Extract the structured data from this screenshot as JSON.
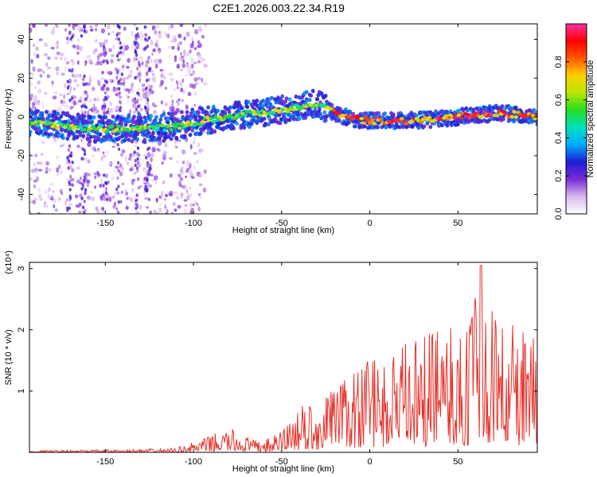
{
  "title": "C2E1.2026.003.22.34.R19",
  "chart_data": [
    {
      "type": "heatmap",
      "xlabel": "Height of straight line (km)",
      "ylabel": "Frequency (Hz)",
      "xlim": [
        -193,
        95
      ],
      "ylim": [
        -50,
        48
      ],
      "xticks": [
        -150,
        -100,
        -50,
        0,
        50
      ],
      "yticks": [
        -40,
        -20,
        0,
        20,
        40
      ],
      "colorbar": {
        "label": "Normalized spectral amplitude",
        "range": [
          0,
          1
        ],
        "ticks": [
          0.0,
          0.2,
          0.4,
          0.6,
          0.8
        ],
        "colors": [
          "#ffffff",
          "#d9b8f0",
          "#7a2bd6",
          "#1e1ed6",
          "#00aaff",
          "#00e0c0",
          "#22dd22",
          "#b8e600",
          "#ffd000",
          "#ff5a00",
          "#ff0000",
          "#ff2fa0"
        ]
      },
      "ridge": [
        {
          "x": -193,
          "y": -3
        },
        {
          "x": -170,
          "y": -5
        },
        {
          "x": -150,
          "y": -6
        },
        {
          "x": -125,
          "y": -6
        },
        {
          "x": -110,
          "y": -5
        },
        {
          "x": -95,
          "y": -2
        },
        {
          "x": -75,
          "y": 1
        },
        {
          "x": -55,
          "y": 3
        },
        {
          "x": -40,
          "y": 5
        },
        {
          "x": -30,
          "y": 7
        },
        {
          "x": -20,
          "y": 2
        },
        {
          "x": -10,
          "y": -1
        },
        {
          "x": 0,
          "y": -2
        },
        {
          "x": 20,
          "y": -2
        },
        {
          "x": 40,
          "y": -1
        },
        {
          "x": 60,
          "y": 1
        },
        {
          "x": 75,
          "y": 2
        },
        {
          "x": 95,
          "y": 0
        }
      ]
    },
    {
      "type": "line",
      "xlabel": "Height of straight line (km)",
      "ylabel": "SNR (10 * v/v)",
      "y_multiplier": "(x10⁴)",
      "xlim": [
        -193,
        95
      ],
      "ylim": [
        0,
        3.1
      ],
      "xticks": [
        -150,
        -100,
        -50,
        0,
        50
      ],
      "yticks": [
        1,
        2,
        3
      ],
      "color": "#e8312a",
      "envelope": [
        {
          "x": -193,
          "y": 0.03
        },
        {
          "x": -130,
          "y": 0.05
        },
        {
          "x": -110,
          "y": 0.07
        },
        {
          "x": -95,
          "y": 0.22
        },
        {
          "x": -80,
          "y": 0.4
        },
        {
          "x": -65,
          "y": 0.2
        },
        {
          "x": -55,
          "y": 0.25
        },
        {
          "x": -40,
          "y": 0.75
        },
        {
          "x": -30,
          "y": 0.85
        },
        {
          "x": -20,
          "y": 1.05
        },
        {
          "x": -10,
          "y": 1.45
        },
        {
          "x": 0,
          "y": 1.5
        },
        {
          "x": 10,
          "y": 1.6
        },
        {
          "x": 20,
          "y": 1.8
        },
        {
          "x": 30,
          "y": 1.9
        },
        {
          "x": 40,
          "y": 2.05
        },
        {
          "x": 50,
          "y": 2.05
        },
        {
          "x": 55,
          "y": 2.2
        },
        {
          "x": 63,
          "y": 3.05
        },
        {
          "x": 68,
          "y": 2.35
        },
        {
          "x": 75,
          "y": 2.2
        },
        {
          "x": 85,
          "y": 2.1
        },
        {
          "x": 95,
          "y": 1.9
        }
      ]
    }
  ]
}
